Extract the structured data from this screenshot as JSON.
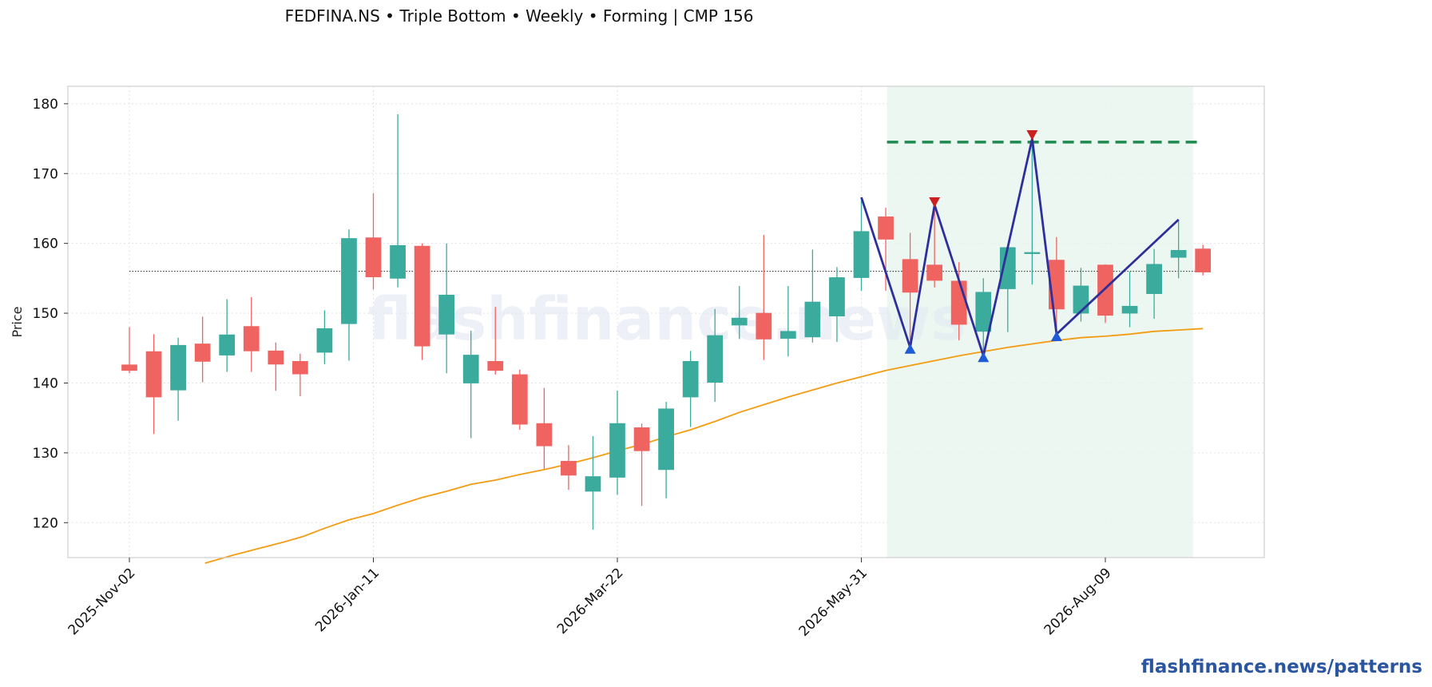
{
  "header": {
    "title": "FEDFINA.NS  •  Triple Bottom  •  Weekly  •  Forming  |  CMP 156"
  },
  "footer": {
    "link": "flashfinance.news/patterns"
  },
  "watermark": {
    "text": "flashfinance.news"
  },
  "colors": {
    "up": "#3aab9c",
    "down": "#ef6461",
    "ma": "#f39c12",
    "neckline": "#1e8a4f",
    "pattern_line": "#2f2f9c",
    "peak_marker": "#cc1f1f",
    "trough_marker": "#1e5bd6",
    "zone_fill": "#e8f5ee"
  },
  "chart_data": {
    "type": "candlestick",
    "ylabel": "Price",
    "ylim": [
      115,
      182.5
    ],
    "yticks": [
      120,
      130,
      140,
      150,
      160,
      170,
      180
    ],
    "xtick_labels": [
      "2025-Nov-02",
      "2026-Jan-11",
      "2026-Mar-22",
      "2026-May-31",
      "2026-Aug-09"
    ],
    "xtick_index": [
      0,
      10,
      20,
      30,
      40
    ],
    "grid": true,
    "candles": [
      {
        "date": "2025-Nov-02",
        "o": 142.6,
        "h": 148.0,
        "l": 141.4,
        "c": 141.8
      },
      {
        "date": "2025-Nov-09",
        "o": 144.5,
        "h": 147.0,
        "l": 132.7,
        "c": 138.0
      },
      {
        "date": "2025-Nov-16",
        "o": 139.0,
        "h": 146.5,
        "l": 134.6,
        "c": 145.4
      },
      {
        "date": "2025-Nov-23",
        "o": 145.6,
        "h": 149.5,
        "l": 140.1,
        "c": 143.1
      },
      {
        "date": "2025-Nov-30",
        "o": 144.0,
        "h": 152.0,
        "l": 141.6,
        "c": 146.9
      },
      {
        "date": "2025-Dec-07",
        "o": 148.1,
        "h": 152.3,
        "l": 141.6,
        "c": 144.6
      },
      {
        "date": "2025-Dec-14",
        "o": 144.6,
        "h": 145.8,
        "l": 138.9,
        "c": 142.7
      },
      {
        "date": "2025-Dec-21",
        "o": 143.1,
        "h": 144.2,
        "l": 138.1,
        "c": 141.3
      },
      {
        "date": "2025-Dec-28",
        "o": 144.4,
        "h": 150.4,
        "l": 142.7,
        "c": 147.8
      },
      {
        "date": "2026-Jan-04",
        "o": 148.5,
        "h": 162.0,
        "l": 143.2,
        "c": 160.7
      },
      {
        "date": "2026-Jan-11",
        "o": 160.8,
        "h": 167.2,
        "l": 153.4,
        "c": 155.2
      },
      {
        "date": "2026-Jan-18",
        "o": 155.0,
        "h": 178.5,
        "l": 153.7,
        "c": 159.7
      },
      {
        "date": "2026-Jan-25",
        "o": 159.6,
        "h": 160.0,
        "l": 143.3,
        "c": 145.3
      },
      {
        "date": "2026-Feb-01",
        "o": 147.0,
        "h": 160.0,
        "l": 141.4,
        "c": 152.6
      },
      {
        "date": "2026-Feb-08",
        "o": 140.0,
        "h": 147.5,
        "l": 132.1,
        "c": 144.0
      },
      {
        "date": "2026-Feb-15",
        "o": 143.1,
        "h": 150.9,
        "l": 141.2,
        "c": 141.8
      },
      {
        "date": "2026-Feb-22",
        "o": 141.2,
        "h": 141.9,
        "l": 133.3,
        "c": 134.1
      },
      {
        "date": "2026-Mar-01",
        "o": 134.2,
        "h": 139.3,
        "l": 127.7,
        "c": 131.0
      },
      {
        "date": "2026-Mar-08",
        "o": 128.8,
        "h": 131.1,
        "l": 124.7,
        "c": 126.8
      },
      {
        "date": "2026-Mar-15",
        "o": 124.5,
        "h": 132.4,
        "l": 119.0,
        "c": 126.6
      },
      {
        "date": "2026-Mar-22",
        "o": 126.5,
        "h": 138.9,
        "l": 124.0,
        "c": 134.2
      },
      {
        "date": "2026-Mar-29",
        "o": 133.6,
        "h": 134.2,
        "l": 122.4,
        "c": 130.3
      },
      {
        "date": "2026-Apr-05",
        "o": 127.6,
        "h": 137.3,
        "l": 123.5,
        "c": 136.3
      },
      {
        "date": "2026-Apr-12",
        "o": 138.0,
        "h": 144.6,
        "l": 133.7,
        "c": 143.1
      },
      {
        "date": "2026-Apr-19",
        "o": 140.1,
        "h": 150.6,
        "l": 137.3,
        "c": 146.8
      },
      {
        "date": "2026-Apr-26",
        "o": 148.3,
        "h": 153.9,
        "l": 146.3,
        "c": 149.3
      },
      {
        "date": "2026-May-03",
        "o": 150.0,
        "h": 161.2,
        "l": 143.3,
        "c": 146.3
      },
      {
        "date": "2026-May-10",
        "o": 146.4,
        "h": 153.9,
        "l": 143.8,
        "c": 147.4
      },
      {
        "date": "2026-May-17",
        "o": 146.6,
        "h": 159.1,
        "l": 145.8,
        "c": 151.6
      },
      {
        "date": "2026-May-24",
        "o": 149.6,
        "h": 156.6,
        "l": 145.9,
        "c": 155.1
      },
      {
        "date": "2026-May-31",
        "o": 155.1,
        "h": 166.6,
        "l": 153.2,
        "c": 161.7
      },
      {
        "date": "2026-Jun-07",
        "o": 163.8,
        "h": 165.1,
        "l": 153.2,
        "c": 160.6
      },
      {
        "date": "2026-Jun-14",
        "o": 157.7,
        "h": 161.5,
        "l": 145.1,
        "c": 153.0
      },
      {
        "date": "2026-Jun-21",
        "o": 156.9,
        "h": 165.6,
        "l": 153.7,
        "c": 154.7
      },
      {
        "date": "2026-Jun-28",
        "o": 154.6,
        "h": 157.3,
        "l": 146.1,
        "c": 148.4
      },
      {
        "date": "2026-Jul-05",
        "o": 147.4,
        "h": 155.0,
        "l": 143.7,
        "c": 153.0
      },
      {
        "date": "2026-Jul-12",
        "o": 153.5,
        "h": 159.5,
        "l": 147.3,
        "c": 159.4
      },
      {
        "date": "2026-Jul-19",
        "o": 158.6,
        "h": 175.0,
        "l": 154.1,
        "c": 158.7
      },
      {
        "date": "2026-Jul-26",
        "o": 157.6,
        "h": 160.9,
        "l": 146.2,
        "c": 150.6
      },
      {
        "date": "2026-Aug-02",
        "o": 150.0,
        "h": 156.5,
        "l": 148.8,
        "c": 153.9
      },
      {
        "date": "2026-Aug-09",
        "o": 156.9,
        "h": 157.0,
        "l": 148.6,
        "c": 149.7
      },
      {
        "date": "2026-Aug-16",
        "o": 150.0,
        "h": 156.0,
        "l": 148.0,
        "c": 151.0
      },
      {
        "date": "2026-Aug-23",
        "o": 152.8,
        "h": 159.2,
        "l": 149.2,
        "c": 157.0
      },
      {
        "date": "2026-Aug-30",
        "o": 158.0,
        "h": 163.4,
        "l": 155.0,
        "c": 159.0
      },
      {
        "date": "2026-Sep-06",
        "o": 159.2,
        "h": 159.8,
        "l": 155.4,
        "c": 155.9
      }
    ],
    "moving_average": [
      {
        "i": 3.1,
        "v": 114.2
      },
      {
        "i": 4.2,
        "v": 115.3
      },
      {
        "i": 5.3,
        "v": 116.3
      },
      {
        "i": 6.3,
        "v": 117.2
      },
      {
        "i": 7.1,
        "v": 118.0
      },
      {
        "i": 8.0,
        "v": 119.2
      },
      {
        "i": 9.0,
        "v": 120.4
      },
      {
        "i": 10.0,
        "v": 121.3
      },
      {
        "i": 11.0,
        "v": 122.5
      },
      {
        "i": 12.0,
        "v": 123.6
      },
      {
        "i": 13.0,
        "v": 124.5
      },
      {
        "i": 14.0,
        "v": 125.5
      },
      {
        "i": 15.0,
        "v": 126.1
      },
      {
        "i": 16.0,
        "v": 126.9
      },
      {
        "i": 17.0,
        "v": 127.6
      },
      {
        "i": 18.0,
        "v": 128.4
      },
      {
        "i": 19.0,
        "v": 129.3
      },
      {
        "i": 20.0,
        "v": 130.3
      },
      {
        "i": 21.0,
        "v": 131.2
      },
      {
        "i": 22.0,
        "v": 132.3
      },
      {
        "i": 23.0,
        "v": 133.3
      },
      {
        "i": 24.0,
        "v": 134.5
      },
      {
        "i": 25.0,
        "v": 135.8
      },
      {
        "i": 26.0,
        "v": 136.9
      },
      {
        "i": 27.0,
        "v": 138.0
      },
      {
        "i": 28.0,
        "v": 139.0
      },
      {
        "i": 29.0,
        "v": 140.0
      },
      {
        "i": 30.0,
        "v": 140.9
      },
      {
        "i": 31.0,
        "v": 141.8
      },
      {
        "i": 32.0,
        "v": 142.5
      },
      {
        "i": 33.0,
        "v": 143.2
      },
      {
        "i": 34.0,
        "v": 143.9
      },
      {
        "i": 35.0,
        "v": 144.5
      },
      {
        "i": 36.0,
        "v": 145.1
      },
      {
        "i": 37.0,
        "v": 145.6
      },
      {
        "i": 38.0,
        "v": 146.1
      },
      {
        "i": 39.0,
        "v": 146.5
      },
      {
        "i": 40.0,
        "v": 146.7
      },
      {
        "i": 41.0,
        "v": 147.0
      },
      {
        "i": 42.0,
        "v": 147.4
      },
      {
        "i": 43.0,
        "v": 147.6
      },
      {
        "i": 44.0,
        "v": 147.8
      }
    ],
    "cmp_line": {
      "value": 156,
      "start_index": 0,
      "end_index": 44
    },
    "neckline": {
      "value": 174.5,
      "start_index": 32,
      "end_index": 44
    },
    "pattern_zone": {
      "start_index": 32,
      "end_index": 44
    },
    "pattern_path": [
      {
        "i": 30,
        "v": 166.6
      },
      {
        "i": 32,
        "v": 145.1
      },
      {
        "i": 33,
        "v": 165.5
      },
      {
        "i": 35,
        "v": 143.9
      },
      {
        "i": 37,
        "v": 175.0
      },
      {
        "i": 38,
        "v": 147.0
      },
      {
        "i": 43,
        "v": 163.4
      }
    ],
    "peak_markers": [
      {
        "i": 33,
        "v": 165.8
      },
      {
        "i": 37,
        "v": 175.4
      }
    ],
    "trough_markers": [
      {
        "i": 32,
        "v": 145.0
      },
      {
        "i": 35,
        "v": 143.8
      },
      {
        "i": 38,
        "v": 146.8
      }
    ]
  }
}
